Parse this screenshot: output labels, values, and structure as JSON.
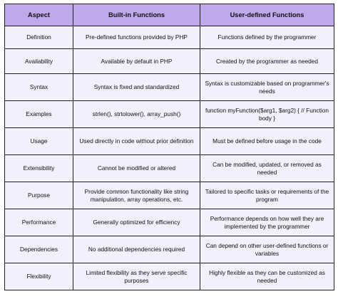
{
  "table": {
    "headers": [
      "Aspect",
      "Built-in Functions",
      "User-defined Functions"
    ],
    "rows": [
      {
        "aspect": "Definition",
        "builtin": "Pre-defined functions provided by PHP",
        "user": "Functions defined by the programmer"
      },
      {
        "aspect": "Availability",
        "builtin": "Available by default in PHP",
        "user": "Created by the programmer as needed"
      },
      {
        "aspect": "Syntax",
        "builtin": "Syntax is fixed and standardized",
        "user": "Syntax is customizable based on programmer's needs"
      },
      {
        "aspect": "Examples",
        "builtin": "strlen(), strtolower(), array_push()",
        "user": "function myFunction($arg1, $arg2) { // Function body }"
      },
      {
        "aspect": "Usage",
        "builtin": "Used directly in code without prior definition",
        "user": "Must be defined before usage in the code"
      },
      {
        "aspect": "Extensibility",
        "builtin": "Cannot be modified or altered",
        "user": "Can be modified, updated, or removed as needed"
      },
      {
        "aspect": "Purpose",
        "builtin": "Provide common functionality like string manipulation, array operations, etc.",
        "user": "Tailored to specific tasks or requirements of the program"
      },
      {
        "aspect": "Performance",
        "builtin": "Generally optimized for efficiency",
        "user": "Performance depends on how well they are implemented by the programmer"
      },
      {
        "aspect": "Dependencies",
        "builtin": "No additional dependencies required",
        "user": "Can depend on other user-defined functions or variables"
      },
      {
        "aspect": "Flexibility",
        "builtin": "Limited flexibility as they serve specific purposes",
        "user": "Highly flexible as they can be customized as needed"
      }
    ]
  }
}
